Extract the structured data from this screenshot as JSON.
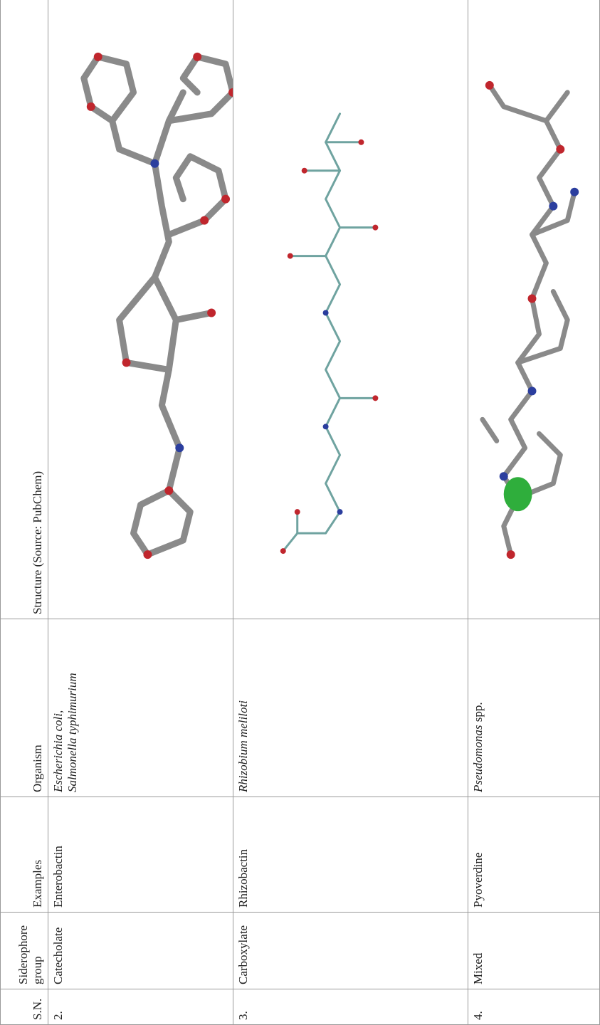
{
  "table": {
    "header": [
      "S.N.",
      "Siderophore group",
      "Examples",
      "Organism",
      "Structure (Source: PubChem)"
    ],
    "rows": [
      {
        "sn": "2.",
        "group": "Catecholate",
        "example": "Enterobactin",
        "organism": [
          "Escherichia coli,",
          "Salmonella typhimurium"
        ]
      },
      {
        "sn": "3.",
        "group": "Carboxylate",
        "example": "Rhizobactin",
        "organism": [
          "Rhizobium meliloti"
        ]
      },
      {
        "sn": "4.",
        "group": "Mixed",
        "example": "Pyoverdine",
        "organism": [
          "Pseudomonas"
        ],
        "organism_note": "spp."
      }
    ]
  }
}
